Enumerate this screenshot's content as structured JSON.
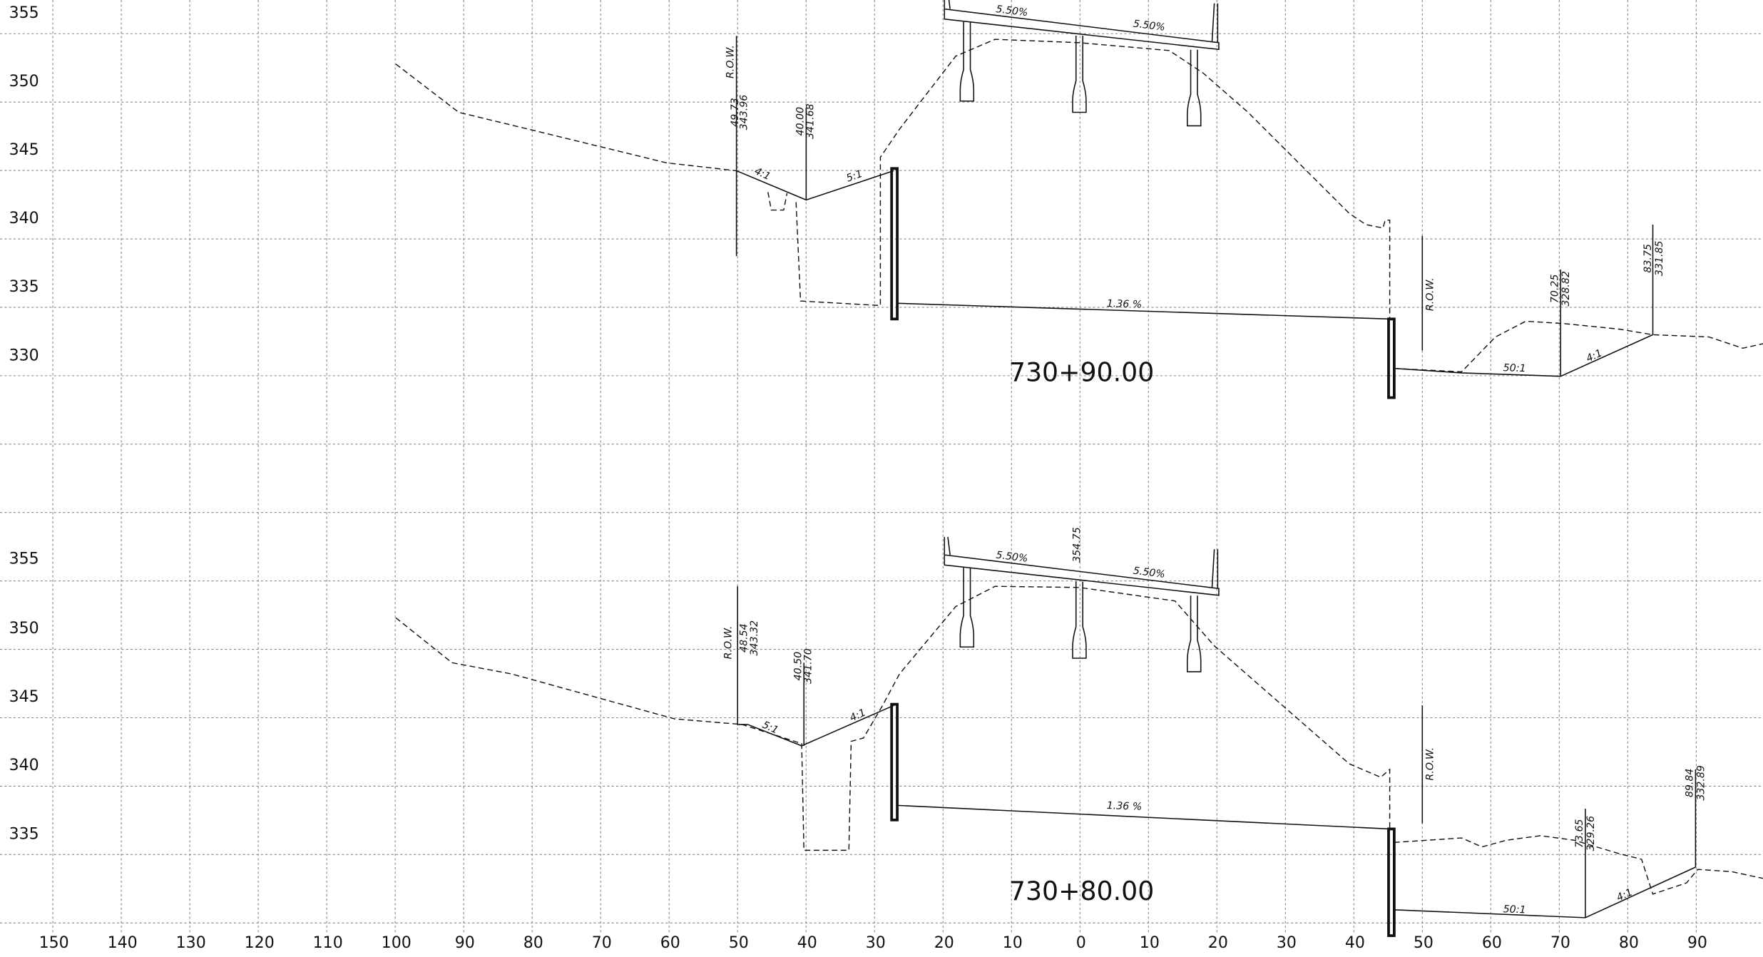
{
  "x_axis_labels": [
    150,
    140,
    130,
    120,
    110,
    100,
    90,
    80,
    70,
    60,
    50,
    40,
    30,
    20,
    10,
    0,
    10,
    20,
    30,
    40,
    50,
    60,
    70,
    80,
    90
  ],
  "sections": [
    {
      "station": "730+90.00",
      "elevation_labels": [
        355,
        350,
        345,
        340,
        335,
        330
      ],
      "annotations": [
        "5.50%",
        "5.50%",
        "R.O.W.",
        "49.73",
        "343.96",
        "40.00",
        "341.68",
        "4:1",
        "5:1",
        "1.36 %",
        "R.O.W.",
        "70.25",
        "328.82",
        "83.75",
        "331.85",
        "50:1",
        "4:1"
      ]
    },
    {
      "station": "730+80.00",
      "elevation_labels": [
        355,
        350,
        345,
        340,
        335
      ],
      "annotations": [
        "5.50%",
        "354.75",
        "5.50%",
        "R.O.W.",
        "48.54",
        "343.32",
        "40.50",
        "341.70",
        "5:1",
        "4:1",
        "1.36 %",
        "R.O.W.",
        "73.65",
        "329.26",
        "89.84",
        "332.89",
        "50:1",
        "4:1"
      ]
    }
  ]
}
